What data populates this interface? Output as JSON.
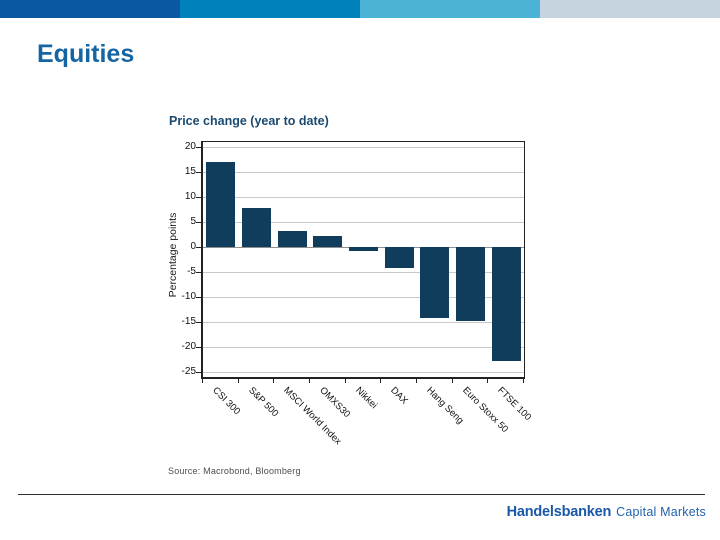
{
  "slide": {
    "title": "Equities",
    "topbar_colors": [
      "#0a59a0",
      "#0081bc",
      "#4cb3d6",
      "#c5d4de"
    ]
  },
  "chart_data": {
    "type": "bar",
    "title": "Price change (year to date)",
    "ylabel": "Percentage points",
    "xlabel": "",
    "categories": [
      "CSI 300",
      "S&P 500",
      "MSCI World Index",
      "OMXS30",
      "Nikkei",
      "DAX",
      "Hang Seng",
      "Euro Stoxx 50",
      "FTSE 100"
    ],
    "values": [
      17.0,
      7.8,
      3.2,
      2.2,
      -0.7,
      -4.2,
      -14.2,
      -14.8,
      -22.7
    ],
    "yticks": [
      20,
      15,
      10,
      5,
      0,
      -5,
      -10,
      -15,
      -20,
      -25
    ],
    "ylim": [
      -26,
      21
    ],
    "grid": true,
    "legend": "none",
    "bar_color": "#103d5c",
    "grid_color": "#c9c9c9",
    "zero_line_color": "#8f8f8f",
    "axis_color": "#222222",
    "source": "Source: Macrobond, Bloomberg"
  },
  "footer": {
    "brand_bold": "Handelsbanken",
    "brand_light": "Capital Markets"
  }
}
